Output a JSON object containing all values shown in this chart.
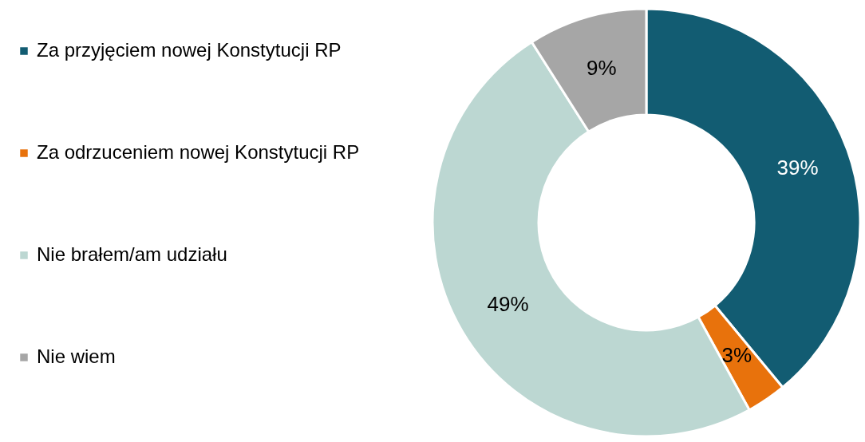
{
  "chart_data": {
    "type": "donut",
    "categories": [
      "Za przyjęciem nowej Konstytucji RP",
      "Za odrzuceniem nowej Konstytucji RP",
      "Nie brałem/am udziału",
      "Nie wiem"
    ],
    "values": [
      39,
      3,
      49,
      9
    ],
    "colors": [
      "#125c72",
      "#e8720c",
      "#bcd7d2",
      "#a6a6a6"
    ],
    "value_labels": [
      "39%",
      "3%",
      "49%",
      "9%"
    ],
    "legend": "left"
  }
}
